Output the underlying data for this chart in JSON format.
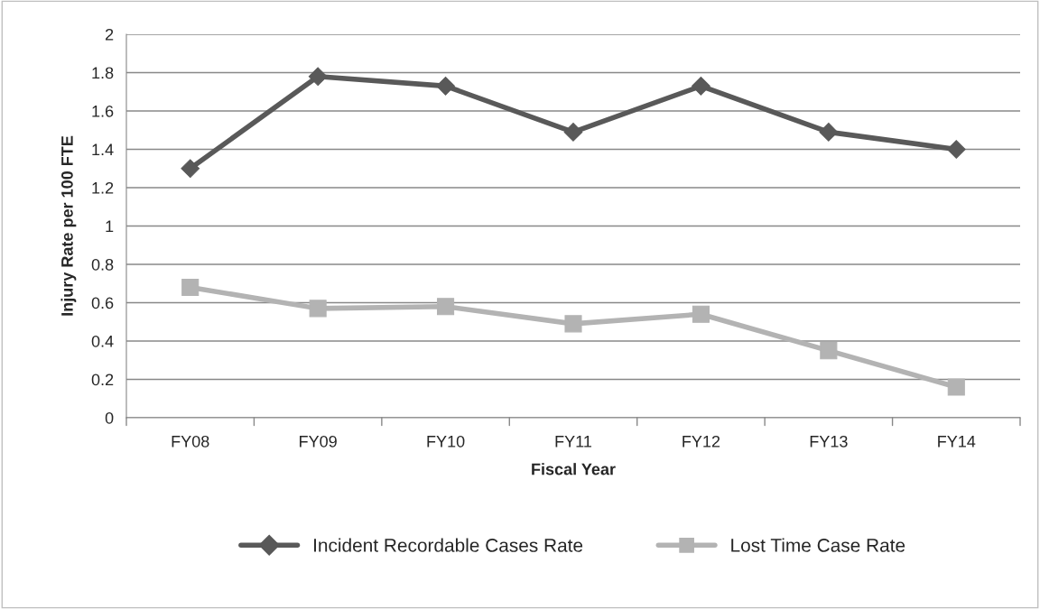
{
  "chart_data": {
    "type": "line",
    "xlabel": "Fiscal Year",
    "ylabel": "Injury Rate per 100 FTE",
    "categories": [
      "FY08",
      "FY09",
      "FY10",
      "FY11",
      "FY12",
      "FY13",
      "FY14"
    ],
    "series": [
      {
        "name": "Incident Recordable Cases Rate",
        "color": "#595959",
        "marker": "diamond",
        "values": [
          1.3,
          1.78,
          1.73,
          1.49,
          1.73,
          1.49,
          1.4
        ]
      },
      {
        "name": "Lost Time Case Rate",
        "color": "#b3b3b3",
        "marker": "square",
        "values": [
          0.68,
          0.57,
          0.58,
          0.49,
          0.54,
          0.35,
          0.16
        ]
      }
    ],
    "ylim": [
      0,
      2
    ],
    "yticks": [
      0,
      0.2,
      0.4,
      0.6,
      0.8,
      1,
      1.2,
      1.4,
      1.6,
      1.8,
      2
    ],
    "grid": "y",
    "legend": "bottom",
    "line_style": "solid"
  }
}
